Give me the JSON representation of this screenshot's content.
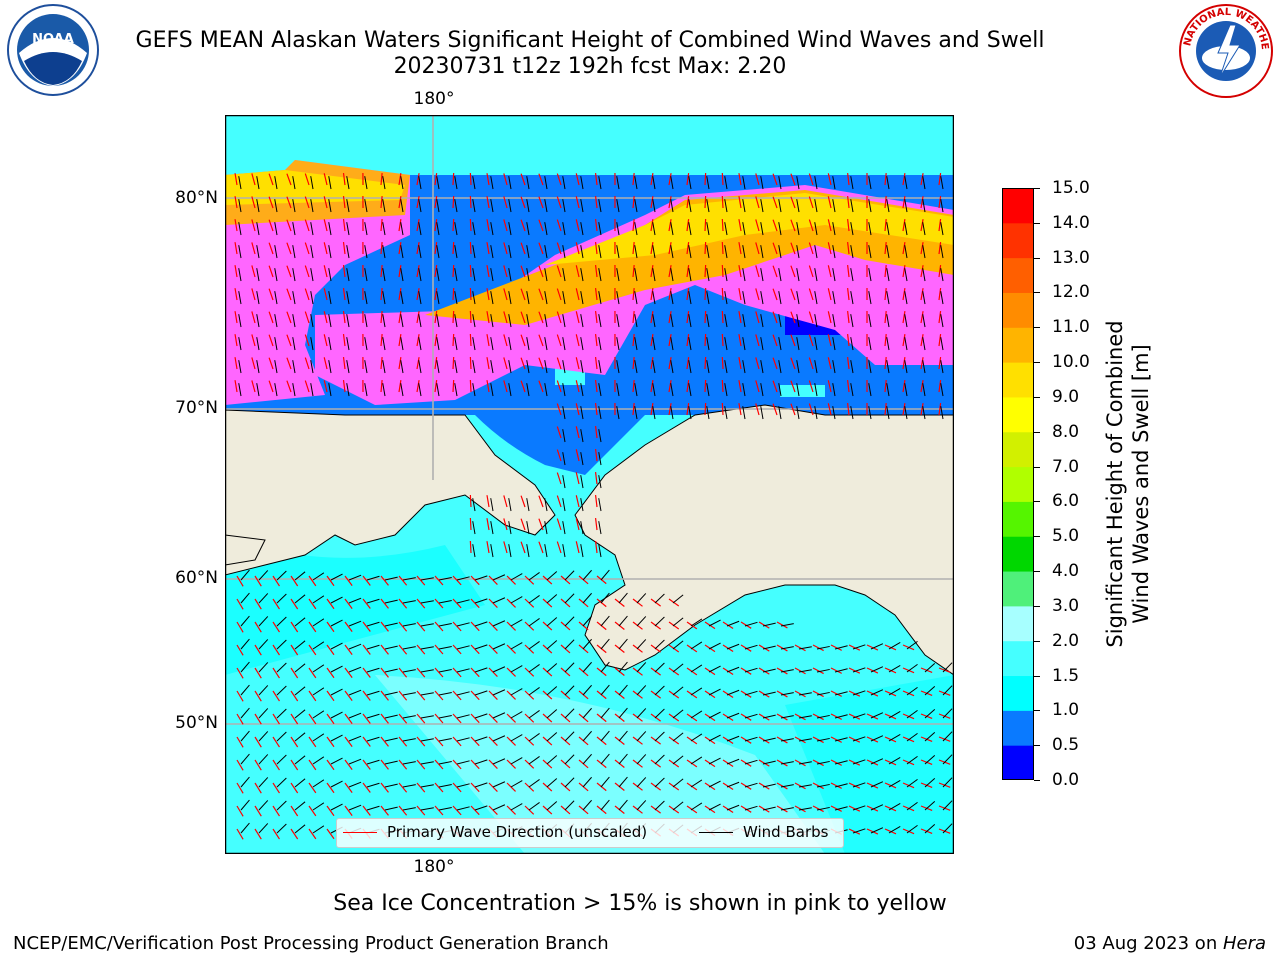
{
  "header": {
    "title_line1": "GEFS MEAN Alaskan Waters Significant Height of Combined Wind Waves and Swell",
    "title_line2": "20230731 t12z 192h fcst   Max: 2.20"
  },
  "logos": {
    "left": {
      "icon": "noaa-logo-icon",
      "text": "NOAA"
    },
    "right": {
      "icon": "nws-logo-icon",
      "text": "NATIONAL WEATHER SERVICE"
    }
  },
  "map": {
    "lon_label_top": "180°",
    "lon_label_bottom": "180°",
    "lat_labels": [
      "80°N",
      "70°N",
      "60°N",
      "50°N"
    ],
    "colors": {
      "land": "#efecdc",
      "grid": "#b0b0b0",
      "wave_arrow": "#ff0000",
      "wind_barb": "#000000"
    }
  },
  "colorbar": {
    "title_line1": "Significant Height of Combined",
    "title_line2": "Wind Waves and Swell [m]",
    "ticks": [
      "15.0",
      "14.0",
      "13.0",
      "12.0",
      "11.0",
      "10.0",
      "9.0",
      "8.0",
      "7.0",
      "6.0",
      "5.0",
      "4.0",
      "3.0",
      "2.0",
      "1.5",
      "1.0",
      "0.5",
      "0.0"
    ],
    "colors_bottom_to_top": [
      "#0000ff",
      "#0a7aff",
      "#00ffff",
      "#45ffff",
      "#a7ffff",
      "#4ff07a",
      "#00d700",
      "#55f500",
      "#b0ff00",
      "#d2f000",
      "#ffff00",
      "#ffe000",
      "#ffb400",
      "#ff8c00",
      "#ff5f00",
      "#ff3200",
      "#ff0000"
    ]
  },
  "legend": {
    "wave_label": "Primary Wave Direction (unscaled)",
    "wind_label": "Wind Barbs"
  },
  "notes": {
    "ice": "Sea Ice Concentration > 15% is shown in pink to yellow"
  },
  "footer": {
    "left": "NCEP/EMC/Verification Post Processing Product Generation Branch",
    "right_prefix": "03 Aug 2023 on ",
    "right_machine": "Hera"
  }
}
